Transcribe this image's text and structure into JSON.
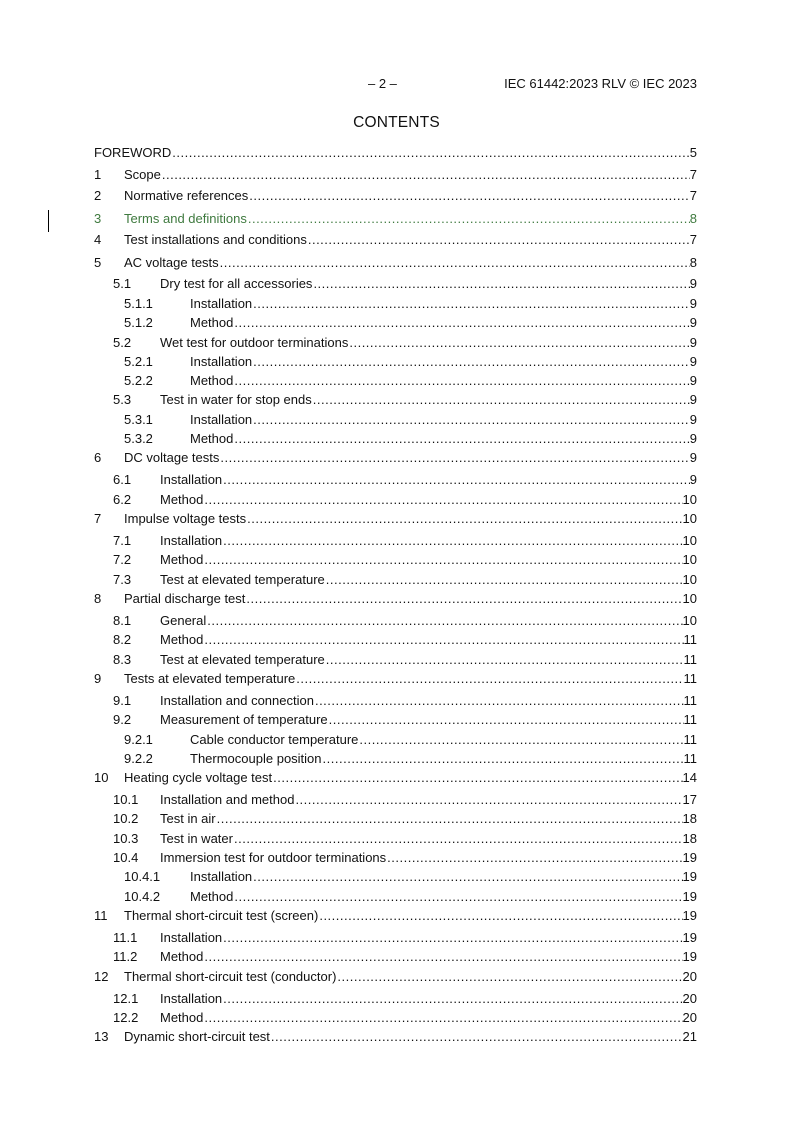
{
  "header": {
    "page_number": "– 2 –",
    "document_id": "IEC 61442:2023 RLV © IEC 2023"
  },
  "title": "CONTENTS",
  "entries": [
    {
      "num": "",
      "title": "FOREWORD",
      "page": "5",
      "level": 0
    },
    {
      "num": "1",
      "title": "Scope",
      "page": "7",
      "level": 1
    },
    {
      "num": "2",
      "title": "Normative references",
      "page": "7",
      "level": 1
    },
    {
      "num": "3",
      "title": "Terms and definitions",
      "page": "8",
      "level": 1,
      "changed": true
    },
    {
      "num": "4",
      "title": "Test installations and conditions",
      "page": "7",
      "level": 1
    },
    {
      "num": "5",
      "title": "AC voltage tests",
      "page": "8",
      "level": 1
    },
    {
      "num": "5.1",
      "title": "Dry test for all accessories",
      "page": "9",
      "level": 2
    },
    {
      "num": "5.1.1",
      "title": "Installation",
      "page": "9",
      "level": 3
    },
    {
      "num": "5.1.2",
      "title": "Method",
      "page": "9",
      "level": 3
    },
    {
      "num": "5.2",
      "title": "Wet test for outdoor terminations",
      "page": "9",
      "level": 2
    },
    {
      "num": "5.2.1",
      "title": "Installation",
      "page": "9",
      "level": 3
    },
    {
      "num": "5.2.2",
      "title": "Method",
      "page": "9",
      "level": 3
    },
    {
      "num": "5.3",
      "title": "Test in water for stop ends",
      "page": "9",
      "level": 2
    },
    {
      "num": "5.3.1",
      "title": "Installation",
      "page": "9",
      "level": 3
    },
    {
      "num": "5.3.2",
      "title": "Method",
      "page": "9",
      "level": 3
    },
    {
      "num": "6",
      "title": "DC voltage tests",
      "page": "9",
      "level": 1
    },
    {
      "num": "6.1",
      "title": "Installation",
      "page": "9",
      "level": 2
    },
    {
      "num": "6.2",
      "title": "Method",
      "page": "10",
      "level": 2
    },
    {
      "num": "7",
      "title": "Impulse voltage tests",
      "page": "10",
      "level": 1
    },
    {
      "num": "7.1",
      "title": "Installation",
      "page": "10",
      "level": 2
    },
    {
      "num": "7.2",
      "title": "Method",
      "page": "10",
      "level": 2
    },
    {
      "num": "7.3",
      "title": "Test at elevated temperature",
      "page": "10",
      "level": 2
    },
    {
      "num": "8",
      "title": "Partial discharge test",
      "page": "10",
      "level": 1
    },
    {
      "num": "8.1",
      "title": "General",
      "page": "10",
      "level": 2
    },
    {
      "num": "8.2",
      "title": "Method",
      "page": "11",
      "level": 2
    },
    {
      "num": "8.3",
      "title": "Test at elevated temperature",
      "page": "11",
      "level": 2
    },
    {
      "num": "9",
      "title": "Tests at elevated temperature",
      "page": "11",
      "level": 1
    },
    {
      "num": "9.1",
      "title": "Installation and connection",
      "page": "11",
      "level": 2
    },
    {
      "num": "9.2",
      "title": "Measurement of temperature",
      "page": "11",
      "level": 2
    },
    {
      "num": "9.2.1",
      "title": "Cable conductor temperature",
      "page": "11",
      "level": 3
    },
    {
      "num": "9.2.2",
      "title": "Thermocouple position",
      "page": "11",
      "level": 3
    },
    {
      "num": "10",
      "title": "Heating cycle voltage test",
      "page": "14",
      "level": 1
    },
    {
      "num": "10.1",
      "title": "Installation and method",
      "page": "17",
      "level": 2
    },
    {
      "num": "10.2",
      "title": "Test in air",
      "page": "18",
      "level": 2
    },
    {
      "num": "10.3",
      "title": "Test in water",
      "page": "18",
      "level": 2
    },
    {
      "num": "10.4",
      "title": "Immersion test for outdoor terminations",
      "page": "19",
      "level": 2
    },
    {
      "num": "10.4.1",
      "title": "Installation",
      "page": "19",
      "level": 3
    },
    {
      "num": "10.4.2",
      "title": "Method",
      "page": "19",
      "level": 3
    },
    {
      "num": "11",
      "title": "Thermal short-circuit test (screen)",
      "page": "19",
      "level": 1
    },
    {
      "num": "11.1",
      "title": "Installation",
      "page": "19",
      "level": 2
    },
    {
      "num": "11.2",
      "title": "Method",
      "page": "19",
      "level": 2
    },
    {
      "num": "12",
      "title": "Thermal short-circuit test (conductor)",
      "page": "20",
      "level": 1
    },
    {
      "num": "12.1",
      "title": "Installation",
      "page": "20",
      "level": 2
    },
    {
      "num": "12.2",
      "title": "Method",
      "page": "20",
      "level": 2
    },
    {
      "num": "13",
      "title": "Dynamic short-circuit test",
      "page": "21",
      "level": 1
    }
  ],
  "colors": {
    "changed_entry": "#3f7a3f",
    "text": "#111111"
  }
}
